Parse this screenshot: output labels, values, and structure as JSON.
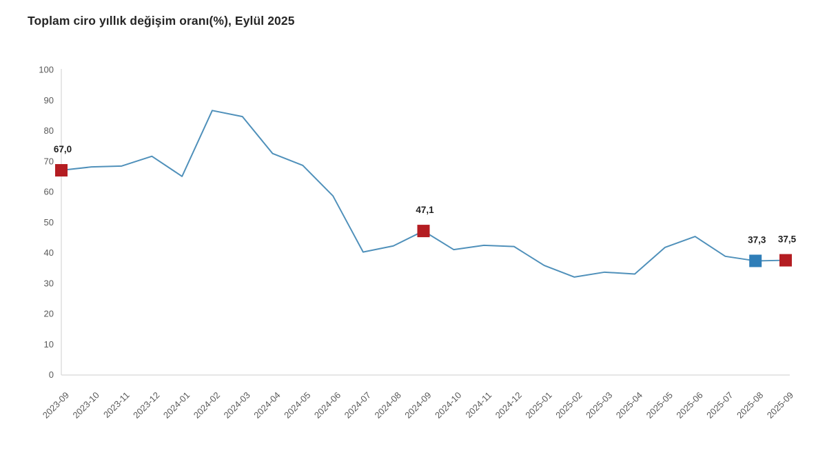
{
  "chart_data": {
    "type": "line",
    "title": "Toplam ciro yıllık değişim oranı(%), Eylül 2025",
    "categories": [
      "2023-09",
      "2023-10",
      "2023-11",
      "2023-12",
      "2024-01",
      "2024-02",
      "2024-03",
      "2024-04",
      "2024-05",
      "2024-06",
      "2024-07",
      "2024-08",
      "2024-09",
      "2024-10",
      "2024-11",
      "2024-12",
      "2025-01",
      "2025-02",
      "2025-03",
      "2025-04",
      "2025-05",
      "2025-06",
      "2025-07",
      "2025-08",
      "2025-09"
    ],
    "values": [
      67.0,
      68.1,
      68.4,
      71.6,
      65.0,
      86.6,
      84.6,
      72.5,
      68.6,
      58.6,
      40.2,
      42.2,
      47.1,
      41.0,
      42.4,
      42.0,
      35.8,
      32.0,
      33.6,
      33.0,
      41.7,
      45.3,
      38.8,
      37.3,
      37.5
    ],
    "xlabel": "",
    "ylabel": "",
    "ylim": [
      0,
      100
    ],
    "yticks": [
      0,
      10,
      20,
      30,
      40,
      50,
      60,
      70,
      80,
      90,
      100
    ],
    "grid": false,
    "legend": false,
    "annotations": [
      {
        "index": 0,
        "label": "67,0",
        "marker": "red"
      },
      {
        "index": 12,
        "label": "47,1",
        "marker": "red"
      },
      {
        "index": 23,
        "label": "37,3",
        "marker": "blue"
      },
      {
        "index": 24,
        "label": "37,5",
        "marker": "red"
      }
    ],
    "colors": {
      "line": "#4f90ba",
      "marker_red": "#b41d22",
      "marker_blue": "#2f7eb8",
      "title_text": "#262626",
      "axis_text": "#595959",
      "annotation_text": "#1f1f1f",
      "axis_line": "#d6d6d6",
      "background": "#ffffff"
    }
  }
}
